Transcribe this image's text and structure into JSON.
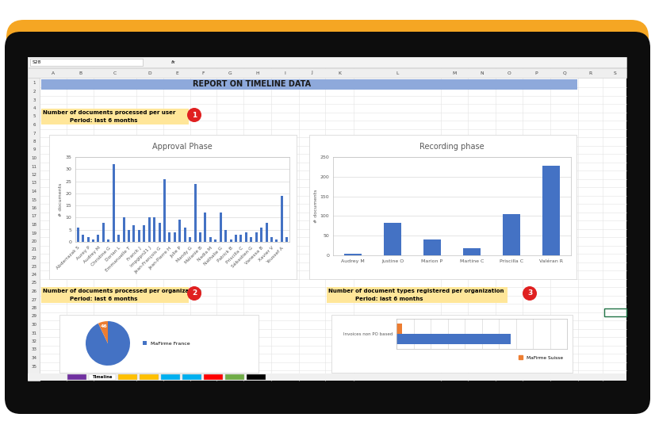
{
  "screen": {
    "cell_ref": "S28",
    "formula_label": "fx",
    "columns": [
      "A",
      "B",
      "C",
      "D",
      "E",
      "F",
      "G",
      "H",
      "I",
      "J",
      "K",
      "L",
      "M",
      "N",
      "O",
      "P",
      "Q",
      "R",
      "S"
    ],
    "rows": [
      1,
      2,
      3,
      4,
      5,
      6,
      7,
      8,
      9,
      10,
      11,
      12,
      13,
      14,
      15,
      16,
      17,
      18,
      19,
      20,
      21,
      22,
      23,
      24,
      25,
      26,
      27,
      28,
      29,
      30,
      31,
      32,
      33,
      34,
      35
    ],
    "title": "REPORT ON TIMELINE DATA",
    "sections": [
      {
        "lines": [
          "Number of documents processed per user",
          "Period: last 6 months"
        ],
        "badge": "1"
      },
      {
        "lines": [
          "Number of documents processed per organization",
          "Period: last 6 months"
        ],
        "badge": "2"
      },
      {
        "lines": [
          "Number of document types registered per organization",
          "Period: last 6 months"
        ],
        "badge": "3"
      }
    ],
    "active_tab": "Timeline"
  },
  "chart_data": [
    {
      "type": "bar",
      "title": "Approval Phase",
      "y_label": "# documents",
      "categories": [
        "Abderrazak S",
        null,
        "Aurey P",
        null,
        "Audrey M",
        null,
        "Christine G",
        null,
        "Dorian L",
        null,
        "Emmanuelle T",
        null,
        "Franck J",
        null,
        "Impgipn21 J",
        null,
        "Jean-François G",
        null,
        "Jean-Pierre H",
        null,
        "Julie P",
        null,
        "Mandy G",
        null,
        "Mélanie B",
        null,
        "Nadia M",
        null,
        "Nathalie G",
        null,
        "Patrick B",
        null,
        "Priscilla C",
        null,
        "Sébastien G",
        null,
        "Vanessa B",
        null,
        "Xavier V",
        null,
        "Youssef A",
        null
      ],
      "values": [
        6,
        3,
        2,
        1,
        3,
        8,
        1,
        32,
        3,
        10,
        5,
        7,
        5,
        7,
        10,
        10,
        8,
        26,
        4,
        4,
        9,
        6,
        2,
        24,
        4,
        12,
        2,
        1,
        12,
        5,
        1,
        3,
        3,
        4,
        2,
        4,
        6,
        8,
        2,
        1,
        19,
        2
      ],
      "color": "#4472C4",
      "ylim": [
        0,
        35
      ],
      "yticks": [
        0,
        5,
        10,
        15,
        20,
        25,
        30,
        35
      ],
      "grid": true
    },
    {
      "type": "bar",
      "title": "Recording phase",
      "y_label": "# documents",
      "categories": [
        "Audrey M",
        "Justine O",
        "Marion P",
        "Martine C",
        "Priscilla C",
        "Valéran R"
      ],
      "values": [
        5,
        82,
        41,
        18,
        105,
        227
      ],
      "color": "#4472C4",
      "ylim": [
        0,
        250
      ],
      "yticks": [
        0,
        50,
        100,
        150,
        200,
        250
      ],
      "grid": true
    },
    {
      "type": "pie",
      "categories": [
        "MaFirme France",
        null
      ],
      "values": [
        600,
        46
      ],
      "colors": [
        "#4472C4",
        "#ED7D31"
      ],
      "data_labels": true,
      "value_labels": [
        null,
        "46"
      ],
      "legend": "center left"
    },
    {
      "type": "bar",
      "orientation": "horizontal",
      "categories": [
        "Invoices non PO based"
      ],
      "series": [
        {
          "name": "MaFirme Suisse",
          "color": "#ED7D31",
          "values": [
            8
          ]
        },
        {
          "color": "#4472C4",
          "values": [
            167
          ]
        }
      ],
      "xlim": [
        0,
        250
      ],
      "xticks": [
        0,
        25,
        50,
        75,
        100,
        125,
        150,
        175,
        200,
        225,
        250
      ],
      "grid": true,
      "tick_labels": "y",
      "legend": "lower right"
    }
  ]
}
